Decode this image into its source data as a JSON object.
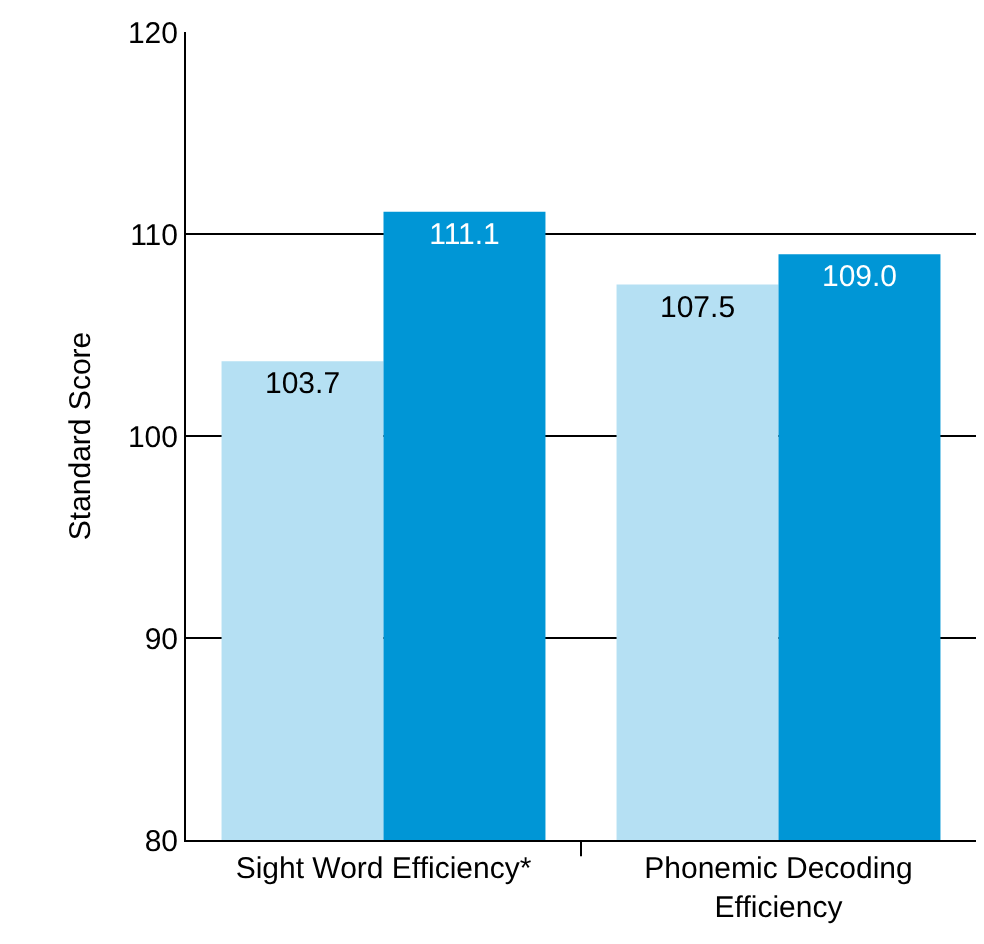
{
  "chart_data": {
    "type": "bar",
    "ylabel": "Standard Score",
    "categories": [
      "Sight Word Efficiency*",
      "Phonemic Decoding\nEfficiency"
    ],
    "series": [
      {
        "color": "#b5e0f3",
        "values": [
          103.7,
          107.5
        ],
        "value_labels": [
          "103.7",
          "107.5"
        ]
      },
      {
        "color": "#0096d6",
        "values": [
          111.1,
          109.0
        ],
        "value_labels": [
          "111.1",
          "109.0"
        ]
      }
    ],
    "ylim": [
      80,
      120
    ],
    "yticks": [
      80,
      90,
      100,
      110,
      120
    ],
    "grid": "y"
  }
}
